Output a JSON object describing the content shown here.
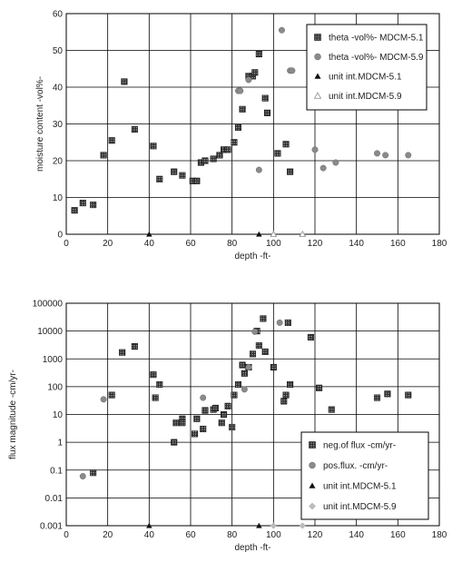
{
  "chart_data": [
    {
      "type": "scatter",
      "xlabel": "depth -ft-",
      "ylabel": "moisture content -vol%-",
      "xlim": [
        0,
        180
      ],
      "ylim": [
        0,
        60
      ],
      "xticks": [
        "0",
        "20",
        "40",
        "60",
        "80",
        "100",
        "120",
        "140",
        "160",
        "180"
      ],
      "yticks": [
        "0",
        "10",
        "20",
        "30",
        "40",
        "50",
        "60"
      ],
      "grid": true,
      "legend_position": "top-right",
      "series": [
        {
          "name": "theta -vol%- MDCM-5.1",
          "marker": "hatched-square",
          "color": "#3a3a3a",
          "points": [
            [
              4,
              6.5
            ],
            [
              8,
              8.5
            ],
            [
              13,
              8
            ],
            [
              18,
              21.5
            ],
            [
              22,
              25.5
            ],
            [
              28,
              41.5
            ],
            [
              33,
              28.5
            ],
            [
              42,
              24
            ],
            [
              45,
              15
            ],
            [
              52,
              17
            ],
            [
              56,
              16
            ],
            [
              61,
              14.5
            ],
            [
              63,
              14.5
            ],
            [
              65,
              19.5
            ],
            [
              67,
              20
            ],
            [
              71,
              20.5
            ],
            [
              74,
              21.5
            ],
            [
              76,
              23
            ],
            [
              78,
              23
            ],
            [
              81,
              25
            ],
            [
              83,
              29
            ],
            [
              85,
              34
            ],
            [
              88,
              43
            ],
            [
              90,
              43
            ],
            [
              91,
              44
            ],
            [
              93,
              49
            ],
            [
              96,
              37
            ],
            [
              97,
              33
            ],
            [
              102,
              22
            ],
            [
              106,
              24.5
            ],
            [
              108,
              17
            ]
          ]
        },
        {
          "name": "theta -vol%- MDCM-5.9",
          "marker": "circle",
          "color": "#8a8a8a",
          "points": [
            [
              83,
              39
            ],
            [
              84,
              39
            ],
            [
              88,
              42
            ],
            [
              93,
              17.5
            ],
            [
              104,
              55.5
            ],
            [
              108,
              44.5
            ],
            [
              109,
              44.5
            ],
            [
              120,
              23
            ],
            [
              124,
              18
            ],
            [
              130,
              19.5
            ],
            [
              150,
              22
            ],
            [
              154,
              21.5
            ],
            [
              165,
              21.5
            ]
          ]
        },
        {
          "name": "unit int.MDCM-5.1",
          "marker": "triangle",
          "color": "#111111",
          "points": [
            [
              40,
              0
            ],
            [
              93,
              0
            ]
          ]
        },
        {
          "name": "unit int.MDCM-5.9",
          "marker": "open-triangle",
          "color": "#999999",
          "points": [
            [
              100,
              0
            ],
            [
              114,
              0
            ]
          ]
        }
      ]
    },
    {
      "type": "scatter",
      "xlabel": "depth -ft-",
      "ylabel": "flux magnitude -cm/yr-",
      "yscale": "log",
      "xlim": [
        0,
        180
      ],
      "ylim": [
        0.001,
        100000
      ],
      "xticks": [
        "0",
        "20",
        "40",
        "60",
        "80",
        "100",
        "120",
        "140",
        "160",
        "180"
      ],
      "yticks": [
        "0.001",
        "0.01",
        "0.1",
        "1",
        "10",
        "100",
        "1000",
        "10000",
        "100000"
      ],
      "grid": true,
      "legend_position": "bottom-right",
      "series": [
        {
          "name": "neg.of flux -cm/yr-",
          "marker": "hatched-square",
          "color": "#3a3a3a",
          "points": [
            [
              13,
              0.08
            ],
            [
              22,
              50
            ],
            [
              27,
              1700
            ],
            [
              33,
              2800
            ],
            [
              42,
              270
            ],
            [
              43,
              40
            ],
            [
              45,
              120
            ],
            [
              52,
              1
            ],
            [
              53,
              5
            ],
            [
              56,
              7
            ],
            [
              56,
              5
            ],
            [
              62,
              2
            ],
            [
              63,
              7
            ],
            [
              66,
              3
            ],
            [
              67,
              14
            ],
            [
              71,
              15
            ],
            [
              72,
              17
            ],
            [
              75,
              5
            ],
            [
              76,
              10
            ],
            [
              78,
              20
            ],
            [
              80,
              3.5
            ],
            [
              81,
              50
            ],
            [
              83,
              120
            ],
            [
              85,
              600
            ],
            [
              86,
              300
            ],
            [
              88,
              500
            ],
            [
              90,
              1500
            ],
            [
              92,
              10000
            ],
            [
              93,
              3000
            ],
            [
              95,
              28000
            ],
            [
              96,
              1800
            ],
            [
              100,
              500
            ],
            [
              105,
              30
            ],
            [
              106,
              50
            ],
            [
              107,
              20000
            ],
            [
              108,
              120
            ],
            [
              118,
              6000
            ],
            [
              122,
              90
            ],
            [
              128,
              15
            ],
            [
              150,
              40
            ],
            [
              155,
              55
            ],
            [
              165,
              50
            ]
          ]
        },
        {
          "name": "pos.flux. -cm/yr-",
          "marker": "circle",
          "color": "#8a8a8a",
          "points": [
            [
              8,
              0.06
            ],
            [
              18,
              35
            ],
            [
              66,
              40
            ],
            [
              86,
              80
            ],
            [
              88,
              500
            ],
            [
              91,
              9500
            ],
            [
              103,
              20000
            ]
          ]
        },
        {
          "name": "unit int.MDCM-5.1",
          "marker": "triangle",
          "color": "#111111",
          "points": [
            [
              40,
              0.001
            ],
            [
              93,
              0.001
            ]
          ]
        },
        {
          "name": "unit int.MDCM-5.9",
          "marker": "diamond",
          "color": "#bdbdbd",
          "points": [
            [
              100,
              0.001
            ],
            [
              114,
              0.001
            ]
          ]
        }
      ]
    }
  ]
}
